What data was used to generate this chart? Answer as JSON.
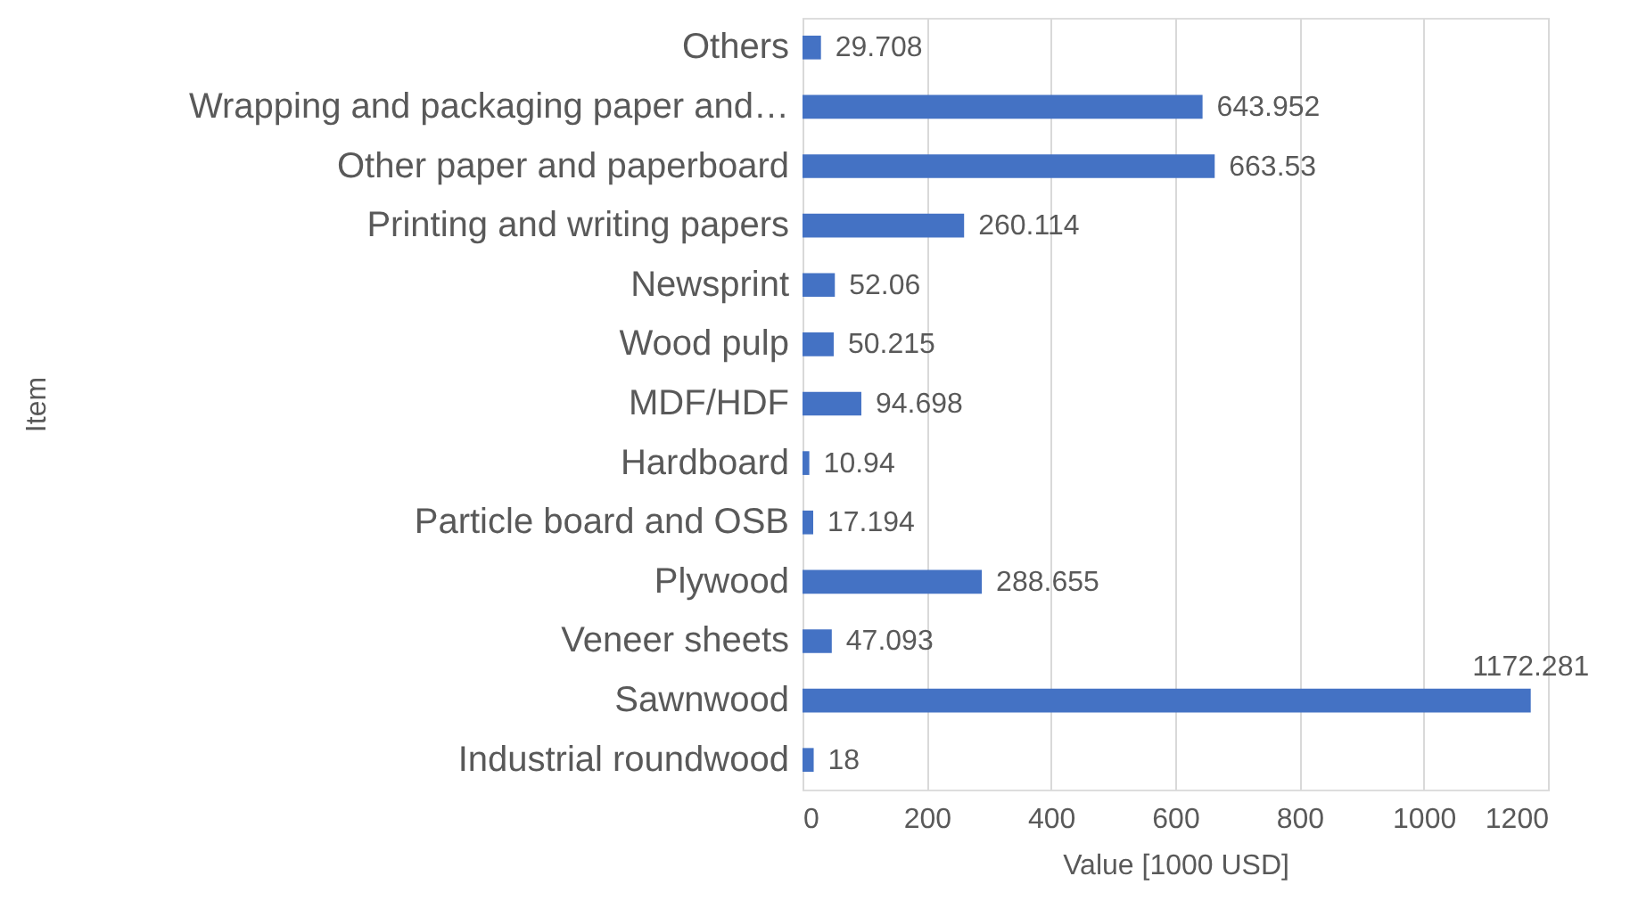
{
  "chart_data": {
    "type": "bar",
    "orientation": "horizontal",
    "categories": [
      "Others",
      "Wrapping and packaging paper and…",
      "Other paper and paperboard",
      "Printing and writing papers",
      "Newsprint",
      "Wood pulp",
      "MDF/HDF",
      "Hardboard",
      "Particle board and OSB",
      "Plywood",
      "Veneer sheets",
      "Sawnwood",
      "Industrial roundwood"
    ],
    "values": [
      29.708,
      643.952,
      663.53,
      260.114,
      52.06,
      50.215,
      94.698,
      10.94,
      17.194,
      288.655,
      47.093,
      1172.281,
      18
    ],
    "color": "#4472c4",
    "xlabel": "Value [1000 USD]",
    "ylabel": "Item",
    "xlim": [
      0,
      1200
    ],
    "xticks": [
      0,
      200,
      400,
      600,
      800,
      1000,
      1200
    ],
    "grid": "x",
    "data_labels": true
  }
}
